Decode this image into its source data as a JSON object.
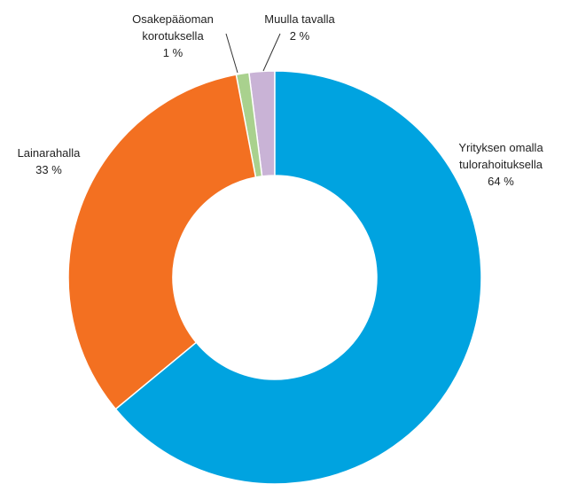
{
  "chart_data": {
    "type": "donut",
    "categories": [
      "Yrityksen omalla tulorahoituksella",
      "Lainarahalla",
      "Osakepääoman korotuksella",
      "Muulla tavalla"
    ],
    "values": [
      64,
      33,
      1,
      2
    ],
    "value_labels": [
      "64 %",
      "33 %",
      "1 %",
      "2 %"
    ],
    "colors": [
      "#00a3e0",
      "#f37021",
      "#a9d18e",
      "#c9b3d6"
    ]
  }
}
